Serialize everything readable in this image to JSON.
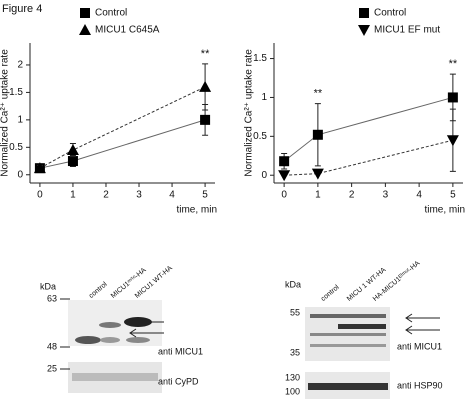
{
  "figure_label": "Figure 4",
  "chart_data": [
    {
      "type": "line",
      "x": [
        0,
        1,
        5
      ],
      "xlim": [
        -0.3,
        5.3
      ],
      "xticks": [
        0,
        1,
        2,
        3,
        4,
        5
      ],
      "ylim": [
        -0.15,
        2.4
      ],
      "yticks": [
        0,
        0.5,
        1,
        1.5,
        2
      ],
      "x_label": "time, min",
      "y_label": "Normalized Ca²⁺ uptake rate",
      "legend": "upper left",
      "series": [
        {
          "name": "Control",
          "color": "#000000",
          "marker": "square",
          "line_style": "solid",
          "values": [
            0.12,
            0.25,
            1.0
          ],
          "errors": [
            0.03,
            0.1,
            0.28
          ]
        },
        {
          "name": "MICU1 C645A",
          "color": "#000000",
          "marker": "triangle-up",
          "line_style": "dashed",
          "values": [
            0.12,
            0.45,
            1.6
          ],
          "errors": [
            0.05,
            0.12,
            0.42
          ]
        }
      ],
      "annotations": [
        {
          "text": "**",
          "x": 5
        }
      ]
    },
    {
      "type": "line",
      "x": [
        0,
        1,
        5
      ],
      "xlim": [
        -0.3,
        5.3
      ],
      "xticks": [
        0,
        1,
        2,
        3,
        4,
        5
      ],
      "ylim": [
        -0.1,
        1.7
      ],
      "yticks": [
        0,
        0.5,
        1,
        1.5
      ],
      "x_label": "time, min",
      "y_label": "Normalized Ca²⁺ uptake rate",
      "legend": "upper right",
      "series": [
        {
          "name": "Control",
          "color": "#000000",
          "marker": "square",
          "line_style": "solid",
          "values": [
            0.18,
            0.52,
            1.0
          ],
          "errors": [
            0.1,
            0.4,
            0.3
          ]
        },
        {
          "name": "MICU1 EF mut",
          "color": "#000000",
          "marker": "triangle-down",
          "line_style": "dashed",
          "values": [
            0.0,
            0.02,
            0.45
          ],
          "errors": [
            0.0,
            0.0,
            0.4
          ]
        }
      ],
      "annotations": [
        {
          "text": "**",
          "x": 1
        },
        {
          "text": "**",
          "x": 5
        }
      ]
    }
  ],
  "blots": [
    {
      "unit": "kDa",
      "markers": [
        "63",
        "48",
        "25"
      ],
      "lanes": [
        "control",
        "MICU1ᵐⁱᵗᵒ-HA",
        "MICU1 WT-HA"
      ],
      "antibodies": [
        "anti MICU1",
        "anti CyPD"
      ]
    },
    {
      "unit": "kDa",
      "markers": [
        "55",
        "35",
        "130",
        "100"
      ],
      "lanes": [
        "control",
        "MICU 1 WT-HA",
        "HA-MICU1ᴱᶠᵐᵘᵗ-HA"
      ],
      "antibodies": [
        "anti MICU1",
        "anti HSP90"
      ]
    }
  ]
}
